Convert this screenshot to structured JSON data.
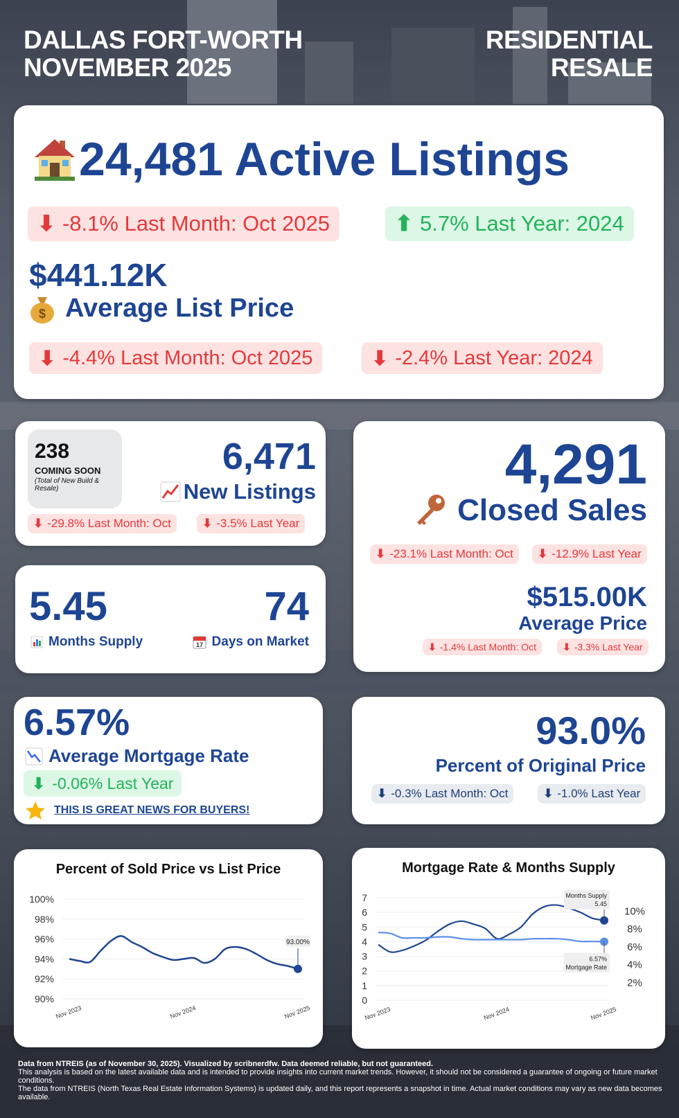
{
  "header": {
    "left_line1": "DALLAS FORT-WORTH",
    "left_line2": "NOVEMBER 2025",
    "right_line1": "RESIDENTIAL",
    "right_line2": "RESALE"
  },
  "active": {
    "value": "24,481 Active Listings",
    "icon": "house-icon",
    "change_month": "-8.1% Last Month: Oct 2025",
    "change_year": "5.7% Last Year: 2024"
  },
  "avg_list": {
    "value": "$441.12K",
    "label": "Average List Price",
    "icon": "money-bag-icon",
    "change_month": "-4.4% Last Month: Oct 2025",
    "change_year": "-2.4% Last Year: 2024"
  },
  "coming_soon": {
    "value": "238",
    "label": "COMING SOON",
    "note": "(Total of New Build & Resale)"
  },
  "new_listings": {
    "value": "6,471",
    "label": "New Listings",
    "icon": "chart-increasing-icon",
    "change_month": "-29.8% Last Month: Oct",
    "change_year": "-3.5% Last Year"
  },
  "closed": {
    "value": "4,291",
    "label": "Closed Sales",
    "icon": "key-icon",
    "change_month": "-23.1% Last Month: Oct",
    "change_year": "-12.9% Last Year",
    "avg_price": "$515.00K",
    "avg_price_label": "Average Price",
    "price_change_month": "-1.4% Last Month: Oct",
    "price_change_year": "-3.3% Last Year"
  },
  "supply": {
    "months_value": "5.45",
    "months_label": "Months Supply",
    "dom_value": "74",
    "dom_label": "Days on Market"
  },
  "mortgage": {
    "value": "6.57%",
    "label": "Average Mortgage Rate",
    "change_year": "-0.06% Last Year",
    "news": "THIS IS GREAT NEWS FOR BUYERS!"
  },
  "orig_price": {
    "value": "93.0%",
    "label": "Percent of Original Price",
    "change_month": "-0.3% Last Month: Oct",
    "change_year": "-1.0% Last Year"
  },
  "arrows": {
    "down": "⬇",
    "up": "⬆"
  },
  "colors": {
    "navy": "#1e4593",
    "red": "#e3393a",
    "green": "#23b35a",
    "series_light": "#5b8fe8"
  },
  "chart_data": [
    {
      "type": "line",
      "title": "Percent of Sold Price vs List Price",
      "x_ticks": [
        "Nov 2023",
        "Nov 2024",
        "Nov 2025"
      ],
      "y_ticks": [
        "100%",
        "98%",
        "96%",
        "94%",
        "92%",
        "90%"
      ],
      "ylim": [
        90,
        100
      ],
      "series": [
        {
          "values": [
            94.0,
            93.8,
            93.7,
            94.8,
            95.8,
            96.3,
            95.7,
            95.2,
            94.6,
            94.2,
            93.9,
            94.0,
            94.1,
            93.6,
            94.0,
            95.0,
            95.2,
            95.0,
            94.5,
            93.9,
            93.5,
            93.3,
            93.0
          ]
        }
      ],
      "annotation": "93.00%"
    },
    {
      "type": "line",
      "title": "Mortgage Rate & Months Supply",
      "x_ticks": [
        "Nov 2023",
        "Nov 2024",
        "Nov 2025"
      ],
      "y_left_ticks": [
        "7",
        "6",
        "5",
        "4",
        "3",
        "2",
        "1",
        "0"
      ],
      "y_right_ticks": [
        "10%",
        "8%",
        "6%",
        "4%",
        "2%"
      ],
      "ylim_left": [
        0,
        7
      ],
      "series": [
        {
          "name": "Months Supply",
          "axis": "left",
          "values": [
            3.8,
            3.3,
            3.4,
            3.7,
            4.1,
            4.7,
            5.2,
            5.4,
            5.2,
            4.9,
            4.2,
            4.5,
            5.0,
            5.9,
            6.4,
            6.5,
            6.3,
            6.0,
            5.6,
            5.45
          ],
          "label": "Months Supply",
          "last": "5.45"
        },
        {
          "name": "Mortgage Rate",
          "axis": "right",
          "values": [
            7.6,
            7.5,
            7.0,
            7.0,
            7.0,
            7.1,
            7.1,
            6.9,
            6.8,
            6.8,
            6.8,
            6.8,
            6.8,
            6.9,
            6.9,
            6.9,
            6.8,
            6.6,
            6.6,
            6.57
          ],
          "label": "Mortgage Rate",
          "last": "6.57%"
        }
      ],
      "ylim_right": [
        0,
        11.5
      ]
    }
  ],
  "footer": {
    "line1": "Data from NTREIS (as of November 30, 2025). Visualized by scribnerdfw. Data deemed reliable, but not guaranteed.",
    "line2": "This analysis is based on the latest available data and is intended to provide insights into current market trends. However, it should not be considered a guarantee of ongoing or future market conditions.",
    "line3": "The data from NTREIS (North Texas Real Estate Information Systems) is updated daily, and this report represents a snapshot in time. Actual market conditions may vary as new data becomes available."
  }
}
